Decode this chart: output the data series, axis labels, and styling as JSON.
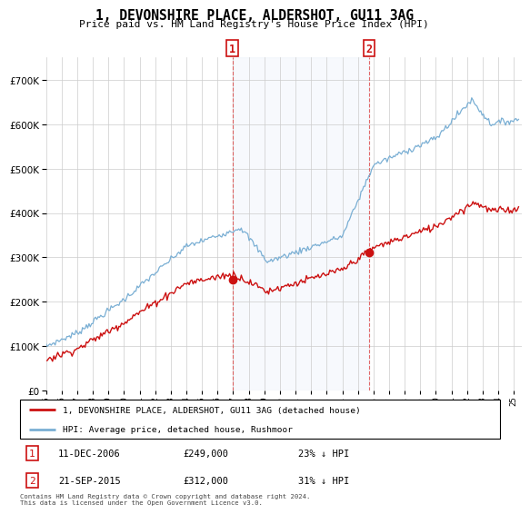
{
  "title": "1, DEVONSHIRE PLACE, ALDERSHOT, GU11 3AG",
  "subtitle": "Price paid vs. HM Land Registry's House Price Index (HPI)",
  "hpi_label": "HPI: Average price, detached house, Rushmoor",
  "price_label": "1, DEVONSHIRE PLACE, ALDERSHOT, GU11 3AG (detached house)",
  "sale1_date": "11-DEC-2006",
  "sale1_price": 249000,
  "sale1_pct": "23% ↓ HPI",
  "sale2_date": "21-SEP-2015",
  "sale2_price": 312000,
  "sale2_pct": "31% ↓ HPI",
  "footer": "Contains HM Land Registry data © Crown copyright and database right 2024.\nThis data is licensed under the Open Government Licence v3.0.",
  "hpi_color": "#7aafd4",
  "price_color": "#cc1111",
  "marker_color": "#cc1111",
  "sale1_x": 2006.95,
  "sale2_x": 2015.72,
  "ylim_max": 750000,
  "ylim_min": 0,
  "xlim_min": 1995.0,
  "xlim_max": 2025.5
}
